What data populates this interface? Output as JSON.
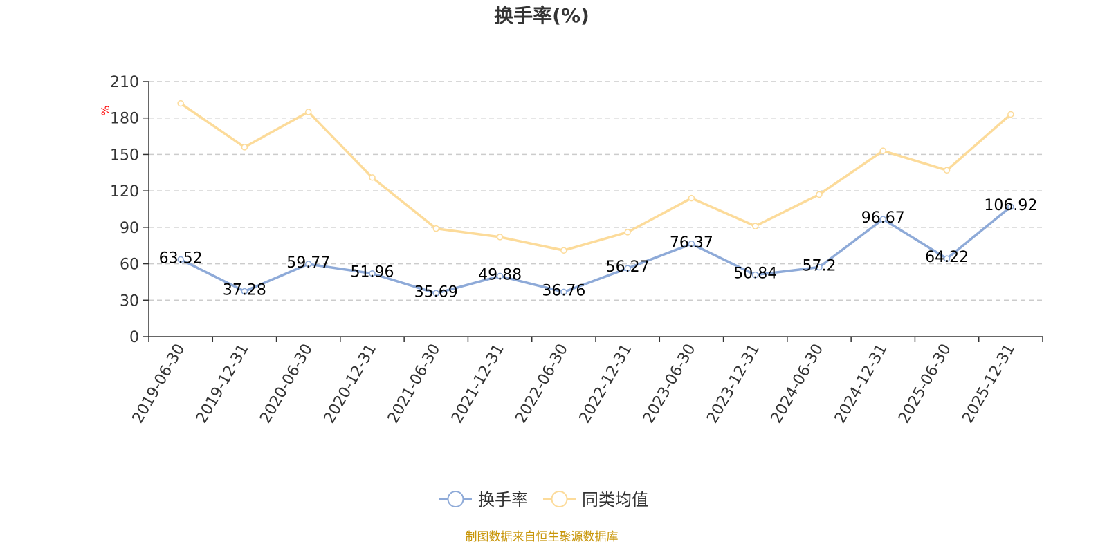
{
  "chart_data": {
    "type": "line",
    "title": "换手率(%)",
    "ylabel": "%",
    "ylim": [
      0,
      210
    ],
    "yticks": [
      0,
      30,
      60,
      90,
      120,
      150,
      180,
      210
    ],
    "categories": [
      "2019-06-30",
      "2019-12-31",
      "2020-06-30",
      "2020-12-31",
      "2021-06-30",
      "2021-12-31",
      "2022-06-30",
      "2022-12-31",
      "2023-06-30",
      "2023-12-31",
      "2024-06-30",
      "2024-12-31",
      "2025-06-30",
      "2025-12-31"
    ],
    "series": [
      {
        "name": "换手率",
        "color": "#8eaad8",
        "values": [
          63.52,
          37.28,
          59.77,
          51.96,
          35.69,
          49.88,
          36.76,
          56.27,
          76.37,
          50.84,
          57.2,
          96.67,
          64.22,
          106.92
        ],
        "labels": [
          "63.52",
          "37.28",
          "59.77",
          "51.96",
          "35.69",
          "49.88",
          "36.76",
          "56.27",
          "76.37",
          "50.84",
          "57.2",
          "96.67",
          "64.22",
          "106.92"
        ]
      },
      {
        "name": "同类均值",
        "color": "#fcdb9a",
        "values": [
          192,
          156,
          185,
          131,
          89,
          82,
          71,
          86,
          114,
          91,
          117,
          153,
          137,
          183
        ]
      }
    ],
    "grid": true,
    "legend_position": "bottom-center"
  },
  "source_note": "制图数据来自恒生聚源数据库"
}
